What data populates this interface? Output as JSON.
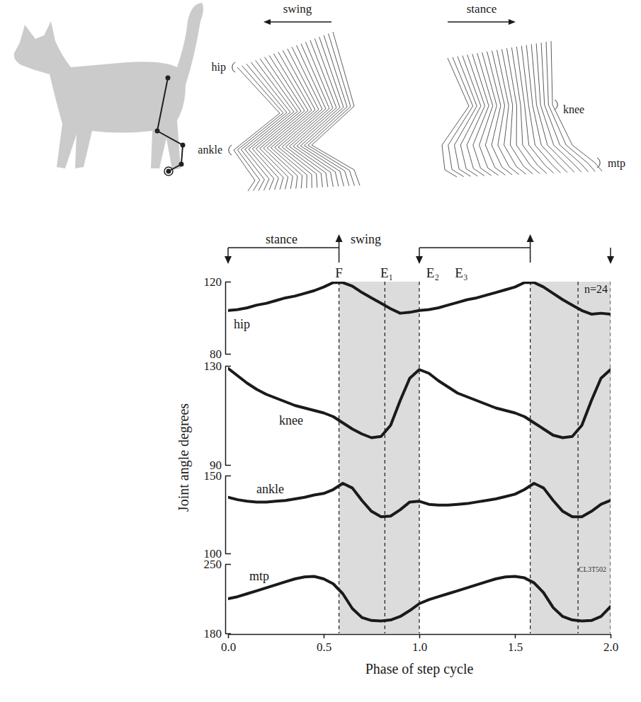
{
  "chart_data": [
    {
      "type": "line",
      "title": "hip",
      "color": "#1a1a1a",
      "tick_labels": "y",
      "x": [
        0,
        0.05,
        0.1,
        0.15,
        0.2,
        0.25,
        0.3,
        0.35,
        0.4,
        0.45,
        0.5,
        0.55,
        0.6,
        0.65,
        0.7,
        0.75,
        0.8,
        0.85,
        0.9,
        0.95,
        1,
        1.05,
        1.1,
        1.15,
        1.2,
        1.25,
        1.3,
        1.35,
        1.4,
        1.45,
        1.5,
        1.55,
        1.6,
        1.65,
        1.7,
        1.75,
        1.8,
        1.85,
        1.9,
        1.95,
        2
      ],
      "values": [
        104,
        104.5,
        105.5,
        107,
        108,
        109.5,
        111,
        112,
        113.5,
        115,
        117,
        119.5,
        119.5,
        117.5,
        114,
        111,
        108,
        105,
        102.5,
        103,
        104,
        104.5,
        105.5,
        107,
        108.5,
        110,
        111,
        112.5,
        114,
        115.5,
        117,
        119.5,
        119.5,
        117,
        113.5,
        110,
        107,
        104,
        102,
        102.5,
        102
      ],
      "xlim": [
        0,
        2
      ],
      "ylim": [
        80,
        120
      ],
      "yticks": [
        80,
        120
      ]
    },
    {
      "type": "line",
      "title": "knee",
      "color": "#1a1a1a",
      "tick_labels": "y",
      "x": [
        0,
        0.05,
        0.1,
        0.15,
        0.2,
        0.25,
        0.3,
        0.35,
        0.4,
        0.45,
        0.5,
        0.55,
        0.6,
        0.65,
        0.7,
        0.75,
        0.8,
        0.85,
        0.9,
        0.95,
        1,
        1.05,
        1.1,
        1.15,
        1.2,
        1.25,
        1.3,
        1.35,
        1.4,
        1.45,
        1.5,
        1.55,
        1.6,
        1.65,
        1.7,
        1.75,
        1.8,
        1.85,
        1.9,
        1.95,
        2
      ],
      "values": [
        129,
        126,
        123,
        120.5,
        118.5,
        117,
        115.5,
        114,
        113,
        112,
        111,
        109.5,
        107,
        104.5,
        102.5,
        101,
        101.5,
        106,
        116,
        125,
        128.5,
        127,
        124,
        121.5,
        119,
        117.5,
        116,
        114.5,
        113,
        112,
        111,
        109.5,
        107,
        104.5,
        102,
        101,
        101.5,
        106,
        116,
        125,
        128.5
      ],
      "xlim": [
        0,
        2
      ],
      "ylim": [
        90,
        130
      ],
      "yticks": [
        90,
        130
      ]
    },
    {
      "type": "line",
      "title": "ankle",
      "color": "#1a1a1a",
      "tick_labels": "y",
      "x": [
        0,
        0.05,
        0.1,
        0.15,
        0.2,
        0.25,
        0.3,
        0.35,
        0.4,
        0.45,
        0.5,
        0.55,
        0.6,
        0.65,
        0.7,
        0.75,
        0.8,
        0.85,
        0.9,
        0.95,
        1,
        1.05,
        1.1,
        1.15,
        1.2,
        1.25,
        1.3,
        1.35,
        1.4,
        1.45,
        1.5,
        1.55,
        1.6,
        1.65,
        1.7,
        1.75,
        1.8,
        1.85,
        1.9,
        1.95,
        2
      ],
      "values": [
        136,
        134.5,
        133.5,
        133,
        133,
        133.5,
        134,
        135,
        136,
        137.5,
        138.5,
        141,
        145,
        142,
        134,
        127,
        123.5,
        124,
        128,
        133,
        133.5,
        131.5,
        131,
        131,
        131.5,
        132,
        133,
        134,
        135,
        136.5,
        138,
        141,
        145,
        142,
        134,
        127,
        123.5,
        123.5,
        127,
        131.5,
        134
      ],
      "xlim": [
        0,
        2
      ],
      "ylim": [
        100,
        150
      ],
      "yticks": [
        100,
        150
      ]
    },
    {
      "type": "line",
      "title": "mtp",
      "color": "#1a1a1a",
      "xlabel": "Phase of step cycle",
      "x": [
        0,
        0.05,
        0.1,
        0.15,
        0.2,
        0.25,
        0.3,
        0.35,
        0.4,
        0.45,
        0.5,
        0.55,
        0.6,
        0.65,
        0.7,
        0.75,
        0.8,
        0.85,
        0.9,
        0.95,
        1,
        1.05,
        1.1,
        1.15,
        1.2,
        1.25,
        1.3,
        1.35,
        1.4,
        1.45,
        1.5,
        1.55,
        1.6,
        1.65,
        1.7,
        1.75,
        1.8,
        1.85,
        1.9,
        1.95,
        2
      ],
      "values": [
        215,
        217,
        220,
        223,
        226,
        229,
        232,
        235,
        237,
        237.5,
        235,
        230,
        220,
        205,
        196,
        193,
        192.5,
        193.5,
        197,
        203,
        210,
        214,
        217,
        220,
        223,
        226,
        229,
        232,
        235,
        237,
        237.5,
        236,
        231,
        221,
        206,
        197,
        193.5,
        192.5,
        193,
        197,
        207
      ],
      "xlim": [
        0,
        2
      ],
      "ylim": [
        180,
        250
      ],
      "yticks": [
        180,
        250
      ],
      "xticks": [
        {
          "value": 0,
          "label": "0.0"
        },
        0.5,
        {
          "value": 1,
          "label": "1.0"
        },
        1.5,
        {
          "value": 2,
          "label": "2.0"
        }
      ]
    }
  ],
  "figure": {
    "ylabel": "Joint angle degrees",
    "n_label": "n=24",
    "code_label": "CL3T502",
    "band_color": "#dcdcdc",
    "bands": [
      [
        0.58,
        1.0
      ],
      [
        1.58,
        2.0
      ]
    ],
    "dashed": [
      0.58,
      0.82,
      1.0,
      1.58,
      1.83,
      2.0
    ],
    "phase_bar": {
      "brackets": [
        [
          0,
          0.58
        ],
        [
          1.0,
          1.58
        ]
      ],
      "end_arrow": 2.0,
      "labels": [
        {
          "text": "stance",
          "x": 0.28
        },
        {
          "text": "swing",
          "x": 0.72
        }
      ],
      "events": [
        {
          "text": "F",
          "x": 0.58
        },
        {
          "text": "E₁",
          "x": 0.83
        },
        {
          "text": "E₂",
          "x": 1.07
        },
        {
          "text": "E₃",
          "x": 1.22
        }
      ]
    },
    "stick_figures": [
      {
        "title": "swing",
        "direction": "left",
        "joints": [
          "hip",
          "ankle"
        ]
      },
      {
        "title": "stance",
        "direction": "right",
        "joints": [
          "knee",
          "mtp"
        ]
      }
    ]
  }
}
